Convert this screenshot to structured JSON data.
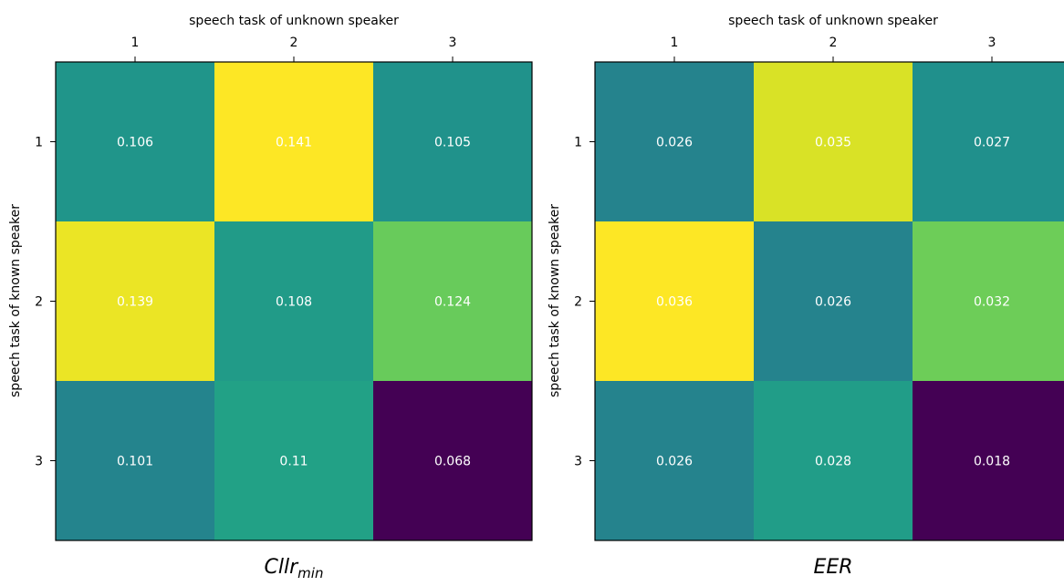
{
  "chart_data": [
    {
      "type": "heatmap",
      "title": "Cllr",
      "title_subscript": "min",
      "xlabel": "speech task of unknown speaker",
      "ylabel": "speech task of known speaker",
      "x_ticks": [
        "1",
        "2",
        "3"
      ],
      "y_ticks": [
        "1",
        "2",
        "3"
      ],
      "values": [
        [
          0.106,
          0.141,
          0.105
        ],
        [
          0.139,
          0.108,
          0.124
        ],
        [
          0.101,
          0.11,
          0.068
        ]
      ],
      "cell_labels": [
        [
          "0.106",
          "0.141",
          "0.105"
        ],
        [
          "0.139",
          "0.108",
          "0.124"
        ],
        [
          "0.101",
          "0.11",
          "0.068"
        ]
      ],
      "colormap": "viridis",
      "xaxis_position": "top"
    },
    {
      "type": "heatmap",
      "title": "EER",
      "xlabel": "speech task of unknown speaker",
      "ylabel": "speech task of known speaker",
      "x_ticks": [
        "1",
        "2",
        "3"
      ],
      "y_ticks": [
        "1",
        "2",
        "3"
      ],
      "values": [
        [
          0.026,
          0.035,
          0.027
        ],
        [
          0.036,
          0.026,
          0.032
        ],
        [
          0.026,
          0.028,
          0.018
        ]
      ],
      "cell_labels": [
        [
          "0.026",
          "0.035",
          "0.027"
        ],
        [
          "0.036",
          "0.026",
          "0.032"
        ],
        [
          "0.026",
          "0.028",
          "0.018"
        ]
      ],
      "colormap": "viridis",
      "xaxis_position": "top"
    }
  ]
}
